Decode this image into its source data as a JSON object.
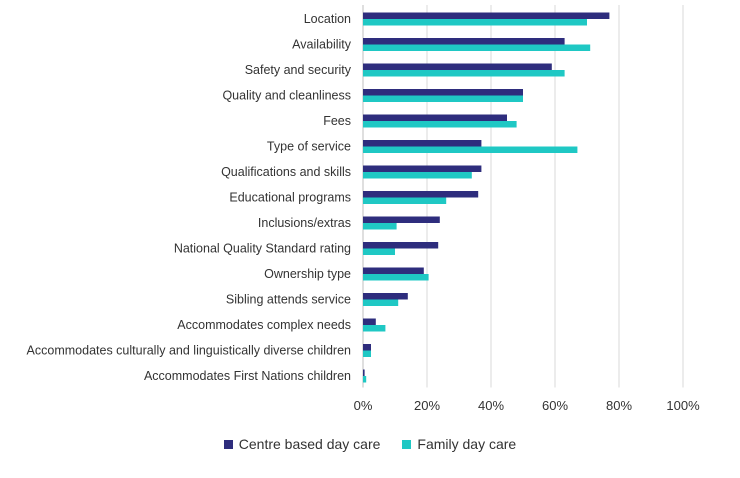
{
  "chart_data": {
    "type": "bar",
    "orientation": "horizontal",
    "title": "",
    "xlabel": "",
    "ylabel": "",
    "categories": [
      "Location",
      "Availability",
      "Safety and security",
      "Quality and cleanliness",
      "Fees",
      "Type of service",
      "Qualifications and skills",
      "Educational programs",
      "Inclusions/extras",
      "National Quality Standard rating",
      "Ownership type",
      "Sibling attends service",
      "Accommodates complex needs",
      "Accommodates culturally and linguistically diverse children",
      "Accommodates First Nations children"
    ],
    "series": [
      {
        "name": "Centre based day care",
        "color": "#2e2d7d",
        "values": [
          77,
          63,
          59,
          50,
          45,
          37,
          37,
          36,
          24,
          23.5,
          19,
          14,
          4,
          2.5,
          0.5
        ]
      },
      {
        "name": "Family day care",
        "color": "#1fc8c4",
        "values": [
          70,
          71,
          63,
          50,
          48,
          67,
          34,
          26,
          10.5,
          10,
          20.5,
          11,
          7,
          2.5,
          1
        ]
      }
    ],
    "xlim": [
      0,
      100
    ],
    "xticks": [
      "0%",
      "20%",
      "40%",
      "60%",
      "80%",
      "100%"
    ],
    "grid": true,
    "legend_position": "bottom"
  }
}
